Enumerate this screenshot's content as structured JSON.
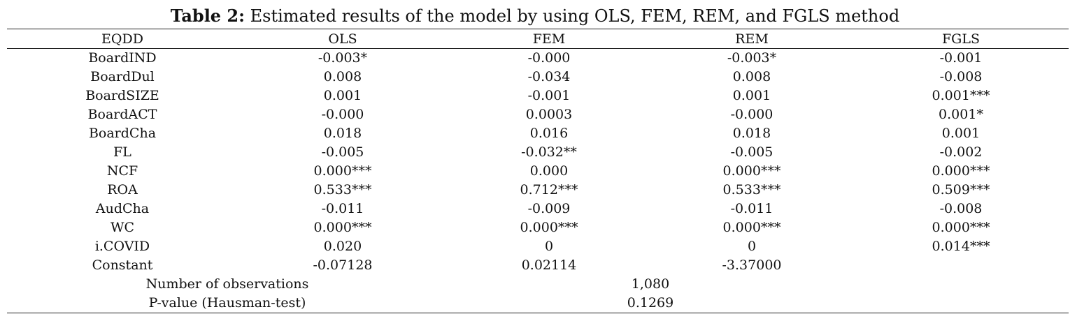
{
  "caption": {
    "label": "Table 2:",
    "text": "Estimated results of the model by using OLS, FEM, REM, and FGLS method"
  },
  "table": {
    "headers": [
      "EQDD",
      "OLS",
      "FEM",
      "REM",
      "FGLS"
    ],
    "rows": [
      {
        "var": "BoardIND",
        "ols": "-0.003*",
        "fem": "-0.000",
        "rem": "-0.003*",
        "fgls": "-0.001"
      },
      {
        "var": "BoardDul",
        "ols": "0.008",
        "fem": "-0.034",
        "rem": "0.008",
        "fgls": "-0.008"
      },
      {
        "var": "BoardSIZE",
        "ols": "0.001",
        "fem": "-0.001",
        "rem": "0.001",
        "fgls": "0.001***"
      },
      {
        "var": "BoardACT",
        "ols": "-0.000",
        "fem": "0.0003",
        "rem": "-0.000",
        "fgls": "0.001*"
      },
      {
        "var": "BoardCha",
        "ols": "0.018",
        "fem": "0.016",
        "rem": "0.018",
        "fgls": "0.001"
      },
      {
        "var": "FL",
        "ols": "-0.005",
        "fem": "-0.032**",
        "rem": "-0.005",
        "fgls": "-0.002"
      },
      {
        "var": "NCF",
        "ols": "0.000***",
        "fem": "0.000",
        "rem": "0.000***",
        "fgls": "0.000***"
      },
      {
        "var": "ROA",
        "ols": "0.533***",
        "fem": "0.712***",
        "rem": "0.533***",
        "fgls": "0.509***"
      },
      {
        "var": "AudCha",
        "ols": "-0.011",
        "fem": "-0.009",
        "rem": "-0.011",
        "fgls": "-0.008"
      },
      {
        "var": "WC",
        "ols": "0.000***",
        "fem": "0.000***",
        "rem": "0.000***",
        "fgls": "0.000***"
      },
      {
        "var": "i.COVID",
        "ols": "0.020",
        "fem": "0",
        "rem": "0",
        "fgls": "0.014***"
      },
      {
        "var": "Constant",
        "ols": "-0.07128",
        "fem": "0.02114",
        "rem": "-3.37000",
        "fgls": ""
      }
    ],
    "summary": [
      {
        "label": "Number of observations",
        "value": "1,080"
      },
      {
        "label": "P-value (Hausman-test)",
        "value": "0.1269"
      }
    ]
  }
}
